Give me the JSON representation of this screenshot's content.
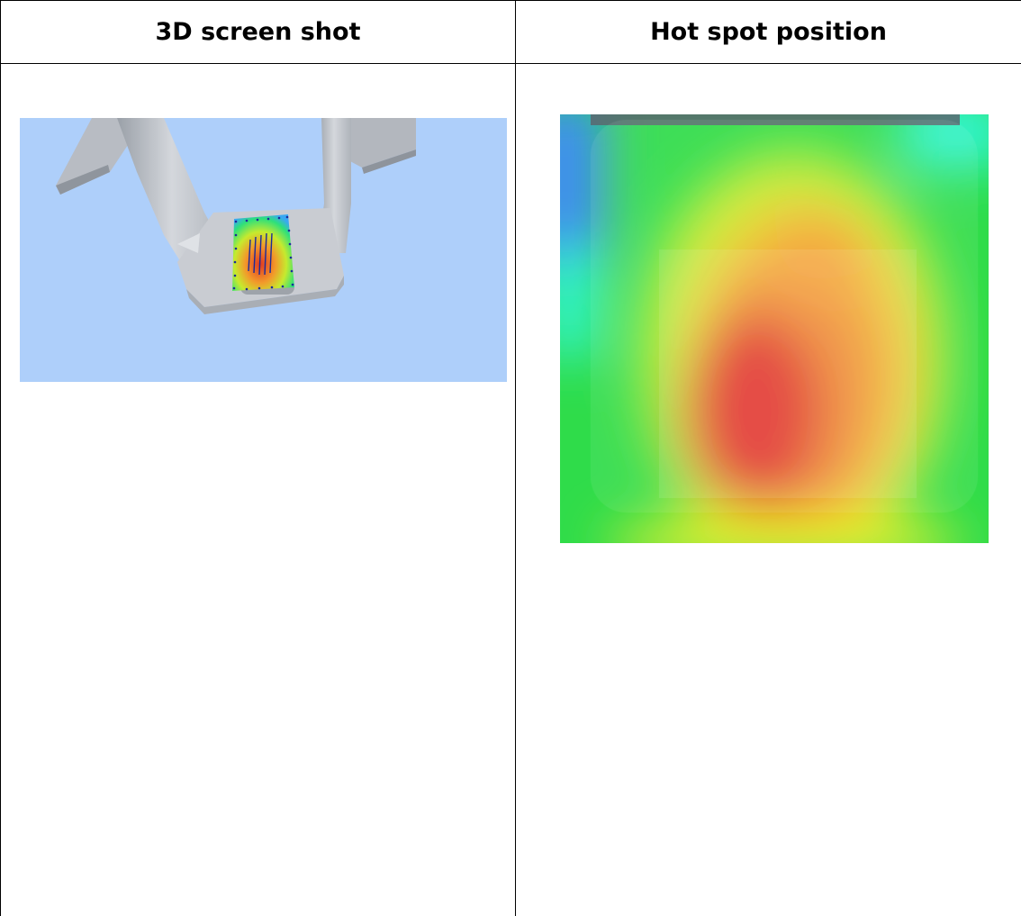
{
  "table": {
    "headers": [
      "3D screen shot",
      "Hot spot position"
    ]
  },
  "images": {
    "left": {
      "subject": "3d-model-screenshot",
      "background_color": "#aecffa",
      "model_color": "#c4c8cf"
    },
    "right": {
      "subject": "hot-spot-heatmap",
      "colors": [
        "#3f8cf5",
        "#33f5d6",
        "#22e03a",
        "#e8f030",
        "#f59a2a",
        "#e02a24"
      ]
    }
  }
}
